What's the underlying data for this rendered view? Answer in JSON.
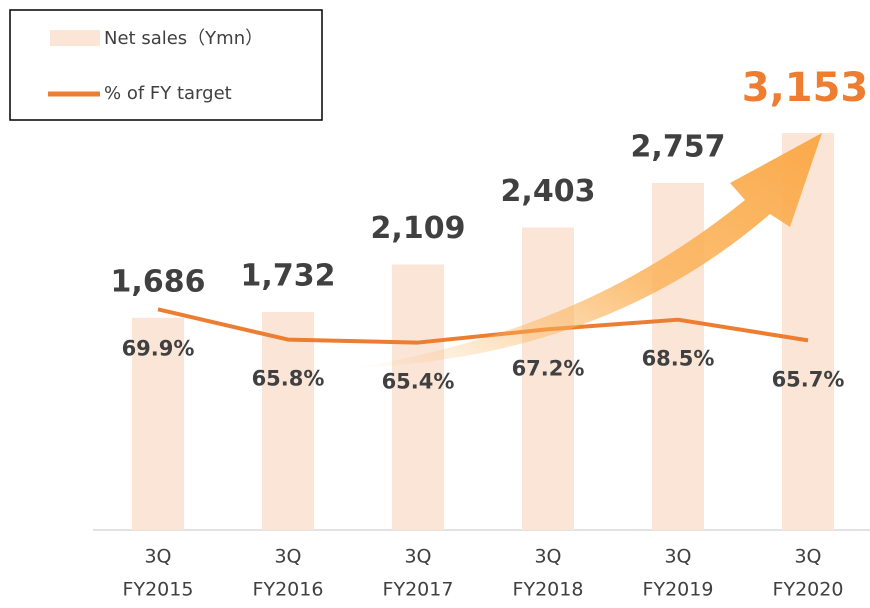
{
  "chart_data": {
    "type": "bar_line",
    "categories": [
      [
        "3Q",
        "FY2015"
      ],
      [
        "3Q",
        "FY2016"
      ],
      [
        "3Q",
        "FY2017"
      ],
      [
        "3Q",
        "FY2018"
      ],
      [
        "3Q",
        "FY2019"
      ],
      [
        "3Q",
        "FY2020"
      ]
    ],
    "series": [
      {
        "name": "Net sales（Ymn）",
        "type": "bar",
        "color": "#fbe5d6",
        "values": [
          1686,
          1732,
          2109,
          2403,
          2757,
          3153
        ],
        "value_labels": [
          "1,686",
          "1,732",
          "2,109",
          "2,403",
          "2,757",
          "3,153"
        ],
        "value_label_colors": [
          "#404040",
          "#404040",
          "#404040",
          "#404040",
          "#404040",
          "#ed7d31"
        ]
      },
      {
        "name": "% of FY target",
        "type": "line",
        "color": "#ed7d31",
        "axis": "y2",
        "values": [
          69.9,
          65.8,
          65.4,
          67.2,
          68.5,
          65.7
        ],
        "value_labels": [
          "69.9%",
          "65.8%",
          "65.4%",
          "67.2%",
          "68.5%",
          "65.7%"
        ]
      }
    ],
    "ylim": [
      0,
      3400
    ],
    "y2lim": [
      40,
      98
    ],
    "legend": "top-left"
  }
}
